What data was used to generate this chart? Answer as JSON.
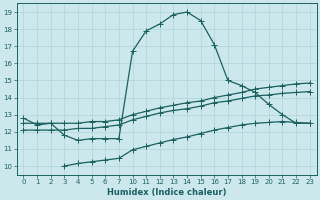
{
  "title": "",
  "xlabel": "Humidex (Indice chaleur)",
  "bg_color": "#cce8ec",
  "grid_color": "#b0d4d8",
  "line_color": "#1a6060",
  "xlim": [
    -0.5,
    23.5
  ],
  "ylim": [
    9.5,
    19.5
  ],
  "xticks": [
    0,
    1,
    2,
    3,
    4,
    5,
    6,
    7,
    10,
    11,
    12,
    13,
    14,
    15,
    16,
    17,
    18,
    19,
    20,
    21,
    22,
    23
  ],
  "yticks": [
    10,
    11,
    12,
    13,
    14,
    15,
    16,
    17,
    18,
    19
  ],
  "line1_x": [
    0,
    1,
    2,
    3,
    4,
    5,
    6,
    7,
    10,
    11,
    12,
    13,
    14,
    15,
    16,
    17,
    18,
    19,
    20,
    21,
    22,
    23
  ],
  "line1_y": [
    12.8,
    12.4,
    12.5,
    11.8,
    11.5,
    11.6,
    11.6,
    11.6,
    16.7,
    17.9,
    18.3,
    18.85,
    19.0,
    18.5,
    17.1,
    15.0,
    14.7,
    14.3,
    13.6,
    13.0,
    12.5,
    12.5
  ],
  "line2_x": [
    0,
    1,
    2,
    3,
    4,
    5,
    6,
    7,
    10,
    11,
    12,
    13,
    14,
    15,
    16,
    17,
    18,
    19,
    20,
    21,
    22,
    23
  ],
  "line2_y": [
    12.5,
    12.5,
    12.5,
    12.5,
    12.5,
    12.6,
    12.6,
    12.7,
    13.0,
    13.2,
    13.4,
    13.55,
    13.7,
    13.8,
    14.0,
    14.15,
    14.3,
    14.5,
    14.6,
    14.7,
    14.8,
    14.85
  ],
  "line3_x": [
    0,
    1,
    2,
    3,
    4,
    5,
    6,
    7,
    10,
    11,
    12,
    13,
    14,
    15,
    16,
    17,
    18,
    19,
    20,
    21,
    22,
    23
  ],
  "line3_y": [
    12.1,
    12.1,
    12.1,
    12.1,
    12.2,
    12.2,
    12.3,
    12.4,
    12.7,
    12.9,
    13.1,
    13.25,
    13.35,
    13.5,
    13.7,
    13.8,
    13.95,
    14.1,
    14.15,
    14.25,
    14.3,
    14.35
  ],
  "line4_x": [
    3,
    4,
    5,
    6,
    7,
    10,
    11,
    12,
    13,
    14,
    15,
    16,
    17,
    18,
    19,
    20,
    21,
    22,
    23
  ],
  "line4_y": [
    10.0,
    10.15,
    10.25,
    10.35,
    10.45,
    10.95,
    11.15,
    11.35,
    11.55,
    11.7,
    11.9,
    12.1,
    12.25,
    12.4,
    12.5,
    12.55,
    12.6,
    12.55,
    12.5
  ]
}
